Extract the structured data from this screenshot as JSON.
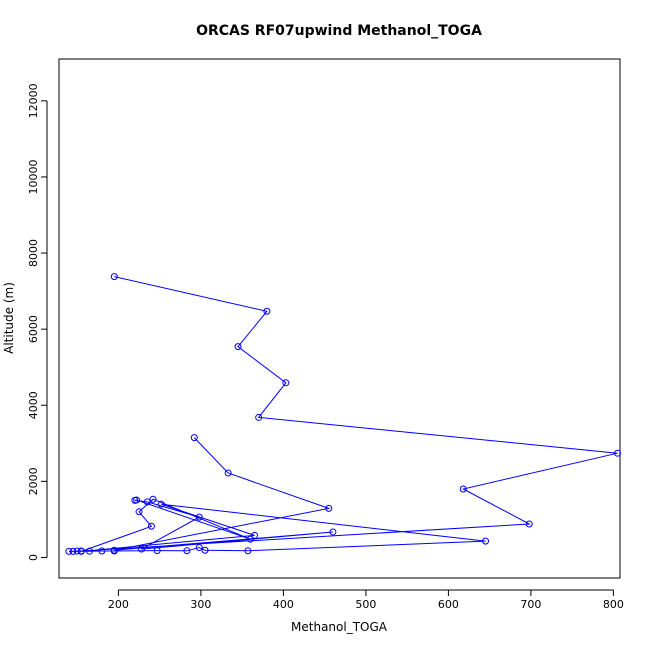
{
  "chart_data": {
    "type": "line",
    "title": "ORCAS RF07upwind Methanol_TOGA",
    "xlabel": "Methanol_TOGA",
    "ylabel": "Altitude (m)",
    "xlim": [
      128,
      808
    ],
    "ylim": [
      -540,
      13100
    ],
    "xticks": [
      200,
      300,
      400,
      500,
      600,
      700,
      800
    ],
    "yticks": [
      0,
      2000,
      4000,
      6000,
      8000,
      10000,
      12000
    ],
    "series_color": "#0000ff",
    "points": [
      {
        "x": 195,
        "y": 7380
      },
      {
        "x": 380,
        "y": 6470
      },
      {
        "x": 345,
        "y": 5540
      },
      {
        "x": 403,
        "y": 4590
      },
      {
        "x": 370,
        "y": 3680
      },
      {
        "x": 805,
        "y": 2740
      },
      {
        "x": 618,
        "y": 1800
      },
      {
        "x": 698,
        "y": 880
      },
      {
        "x": 155,
        "y": 170
      },
      {
        "x": 150,
        "y": 170
      },
      {
        "x": 145,
        "y": 160
      },
      {
        "x": 140,
        "y": 160
      },
      {
        "x": 165,
        "y": 165
      },
      {
        "x": 180,
        "y": 170
      },
      {
        "x": 195,
        "y": 170
      },
      {
        "x": 247,
        "y": 180
      },
      {
        "x": 283,
        "y": 175
      },
      {
        "x": 298,
        "y": 260
      },
      {
        "x": 305,
        "y": 190
      },
      {
        "x": 357,
        "y": 175
      },
      {
        "x": 645,
        "y": 430
      },
      {
        "x": 252,
        "y": 1400
      },
      {
        "x": 365,
        "y": 580
      },
      {
        "x": 155,
        "y": 160
      },
      {
        "x": 240,
        "y": 820
      },
      {
        "x": 225,
        "y": 1200
      },
      {
        "x": 242,
        "y": 1530
      },
      {
        "x": 360,
        "y": 480
      },
      {
        "x": 222,
        "y": 1510
      },
      {
        "x": 220,
        "y": 1500
      },
      {
        "x": 235,
        "y": 1460
      },
      {
        "x": 298,
        "y": 1060
      },
      {
        "x": 228,
        "y": 220
      },
      {
        "x": 460,
        "y": 670
      },
      {
        "x": 195,
        "y": 190
      },
      {
        "x": 455,
        "y": 1290
      },
      {
        "x": 333,
        "y": 2220
      },
      {
        "x": 292,
        "y": 3150
      }
    ]
  }
}
